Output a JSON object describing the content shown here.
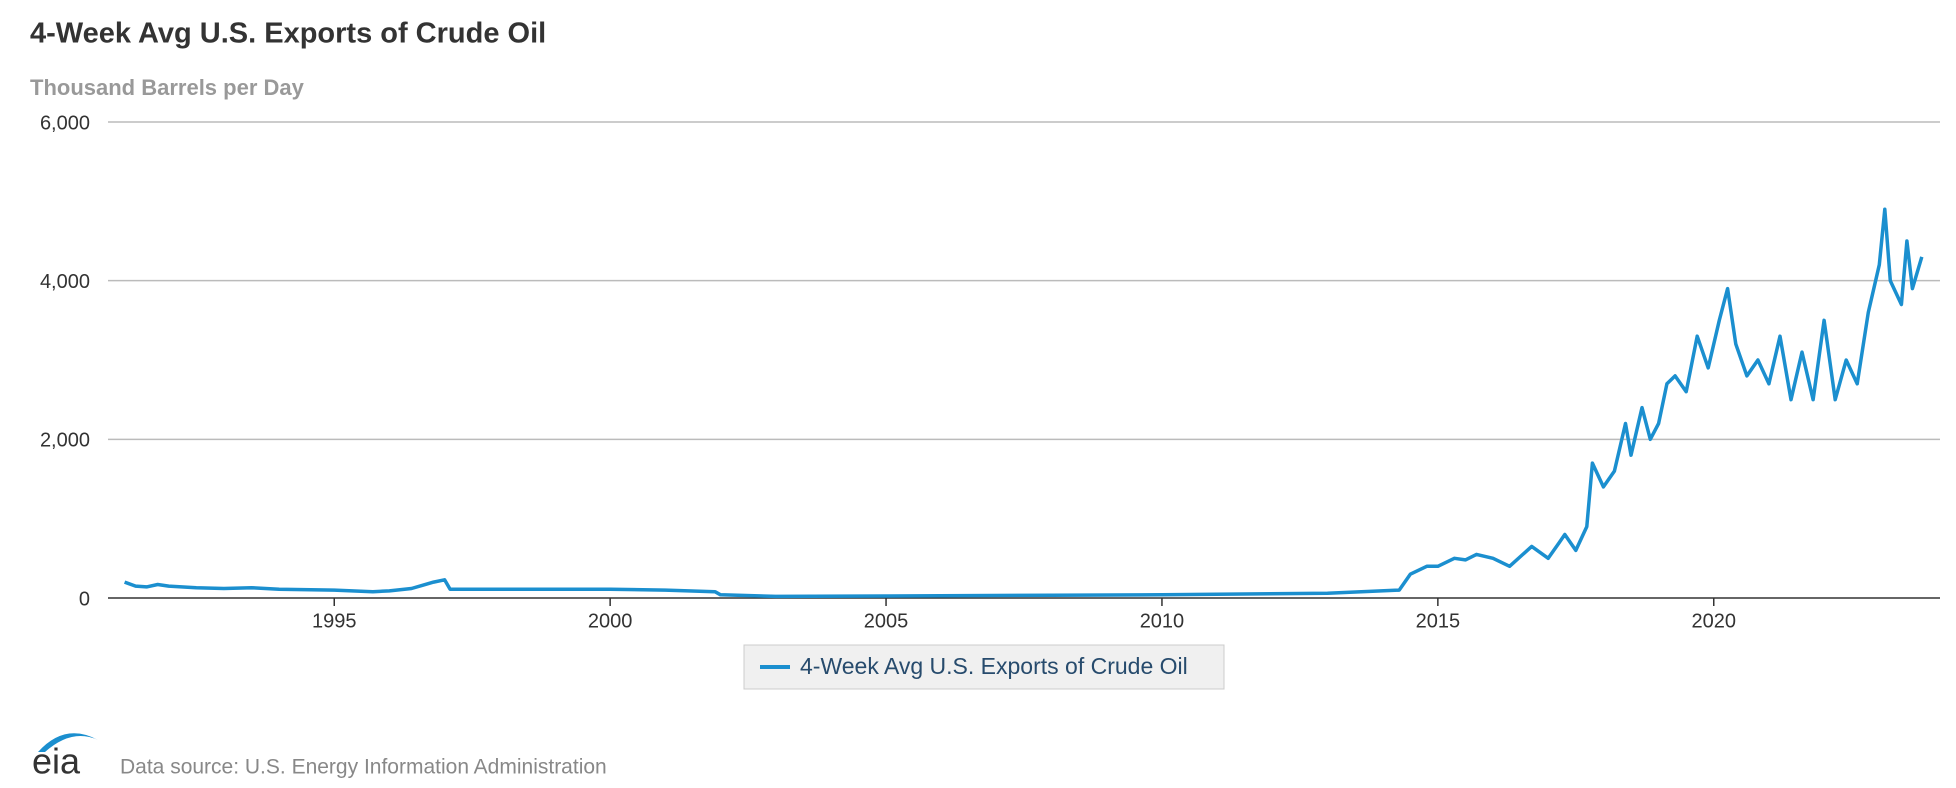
{
  "chart_data": {
    "type": "line",
    "title": "4-Week Avg U.S. Exports of Crude Oil",
    "subtitle": "Thousand Barrels per Day",
    "source": "Data source: U.S. Energy Information Administration",
    "logo": "eia",
    "x": [
      1991.2,
      1991.4,
      1991.6,
      1991.8,
      1992.0,
      1992.5,
      1993.0,
      1993.5,
      1994.0,
      1995.0,
      1995.7,
      1996.0,
      1996.4,
      1996.6,
      1996.8,
      1997.0,
      1997.1,
      1998.0,
      2000.0,
      2001.0,
      2001.9,
      2002.0,
      2003.0,
      2005.0,
      2008.0,
      2010.0,
      2013.0,
      2014.3,
      2014.5,
      2014.8,
      2015.0,
      2015.3,
      2015.5,
      2015.7,
      2016.0,
      2016.3,
      2016.7,
      2017.0,
      2017.2,
      2017.3,
      2017.5,
      2017.7,
      2017.8,
      2018.0,
      2018.2,
      2018.4,
      2018.5,
      2018.7,
      2018.85,
      2019.0,
      2019.15,
      2019.3,
      2019.5,
      2019.7,
      2019.9,
      2020.1,
      2020.25,
      2020.4,
      2020.6,
      2020.8,
      2021.0,
      2021.2,
      2021.4,
      2021.6,
      2021.8,
      2022.0,
      2022.2,
      2022.4,
      2022.6,
      2022.8,
      2023.0,
      2023.1,
      2023.2,
      2023.4,
      2023.5,
      2023.6,
      2023.77
    ],
    "series": [
      {
        "name": "4-Week Avg U.S. Exports of Crude Oil",
        "color": "#1b8fcf",
        "values": [
          200,
          150,
          140,
          170,
          150,
          130,
          120,
          130,
          110,
          100,
          80,
          90,
          120,
          160,
          200,
          230,
          110,
          110,
          110,
          100,
          80,
          40,
          20,
          25,
          35,
          40,
          60,
          100,
          300,
          400,
          400,
          500,
          480,
          550,
          500,
          400,
          650,
          500,
          700,
          800,
          600,
          900,
          1700,
          1400,
          1600,
          2200,
          1800,
          2400,
          2000,
          2200,
          2700,
          2800,
          2600,
          3300,
          2900,
          3500,
          3900,
          3200,
          2800,
          3000,
          2700,
          3300,
          2500,
          3100,
          2500,
          3500,
          2500,
          3000,
          2700,
          3600,
          4200,
          4900,
          4000,
          3700,
          4500,
          3900,
          4300
        ]
      }
    ],
    "xlim": [
      1990.9,
      2024.1
    ],
    "xticks": [
      1995,
      2000,
      2005,
      2010,
      2015,
      2020
    ],
    "ylim": [
      0,
      6000
    ],
    "yticks": [
      0,
      {
        "value": 2000,
        "label": "2,000"
      },
      {
        "value": 4000,
        "label": "4,000"
      },
      {
        "value": 6000,
        "label": "6,000"
      }
    ],
    "grid": true
  }
}
